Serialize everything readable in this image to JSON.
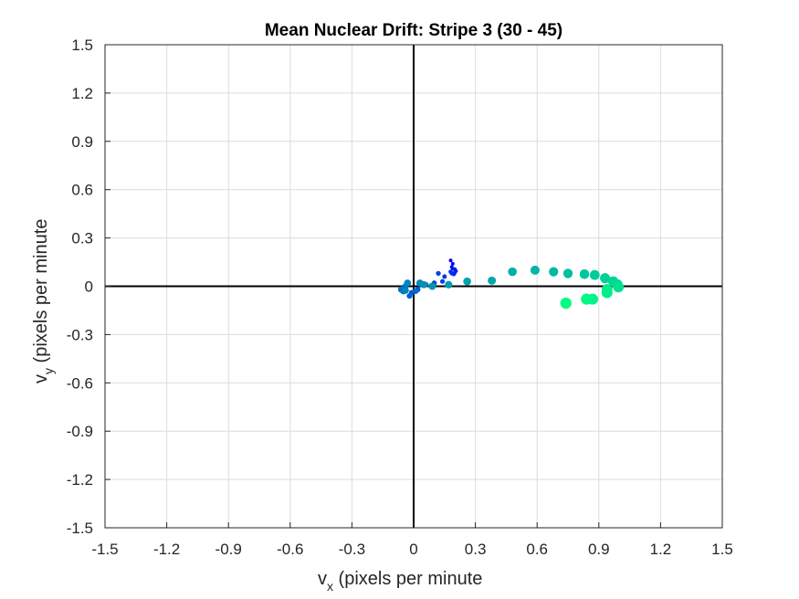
{
  "chart_data": {
    "type": "scatter",
    "title": "Mean Nuclear Drift: Stripe 3 (30 - 45)",
    "xlabel": {
      "main": "v",
      "sub": "x",
      "rest": " (pixels per minute"
    },
    "ylabel": {
      "main": "v",
      "sub": "y",
      "rest": " (pixels per minute"
    },
    "xlim": [
      -1.5,
      1.5
    ],
    "ylim": [
      -1.5,
      1.5
    ],
    "xticks": [
      "-1.5",
      "-1.2",
      "-0.9",
      "-0.6",
      "-0.3",
      "0",
      "0.3",
      "0.6",
      "0.9",
      "1.2",
      "1.5"
    ],
    "yticks": [
      "1.5",
      "1.2",
      "0.9",
      "0.6",
      "0.3",
      "0",
      "-0.3",
      "-0.6",
      "-0.9",
      "-1.2",
      "-1.5"
    ],
    "grid": true,
    "color_start": "#0000ff",
    "color_end": "#00ff80",
    "points": [
      {
        "x": 0.18,
        "y": 0.16,
        "s": 2.0
      },
      {
        "x": 0.19,
        "y": 0.14,
        "s": 2.0
      },
      {
        "x": 0.185,
        "y": 0.12,
        "s": 2.0
      },
      {
        "x": 0.19,
        "y": 0.11,
        "s": 2.0
      },
      {
        "x": 0.2,
        "y": 0.105,
        "s": 2.2
      },
      {
        "x": 0.205,
        "y": 0.095,
        "s": 2.2
      },
      {
        "x": 0.2,
        "y": 0.085,
        "s": 2.2
      },
      {
        "x": 0.195,
        "y": 0.075,
        "s": 2.3
      },
      {
        "x": 0.185,
        "y": 0.08,
        "s": 2.3
      },
      {
        "x": 0.18,
        "y": 0.09,
        "s": 2.4
      },
      {
        "x": 0.15,
        "y": 0.06,
        "s": 2.5
      },
      {
        "x": 0.14,
        "y": 0.03,
        "s": 2.6
      },
      {
        "x": 0.12,
        "y": 0.08,
        "s": 2.7
      },
      {
        "x": 0.1,
        "y": 0.02,
        "s": 2.8
      },
      {
        "x": 0.06,
        "y": 0.01,
        "s": 2.8
      },
      {
        "x": 0.02,
        "y": -0.02,
        "s": 3.0
      },
      {
        "x": -0.01,
        "y": -0.04,
        "s": 3.0
      },
      {
        "x": -0.02,
        "y": -0.06,
        "s": 3.1
      },
      {
        "x": 0.01,
        "y": -0.03,
        "s": 3.2
      },
      {
        "x": -0.04,
        "y": 0.0,
        "s": 3.4
      },
      {
        "x": -0.06,
        "y": -0.02,
        "s": 3.6
      },
      {
        "x": -0.05,
        "y": -0.03,
        "s": 3.7
      },
      {
        "x": -0.04,
        "y": -0.025,
        "s": 3.8
      },
      {
        "x": -0.03,
        "y": 0.02,
        "s": 3.8
      },
      {
        "x": 0.03,
        "y": 0.02,
        "s": 3.9
      },
      {
        "x": 0.05,
        "y": 0.01,
        "s": 3.9
      },
      {
        "x": 0.09,
        "y": 0.0,
        "s": 4.0
      },
      {
        "x": 0.17,
        "y": 0.01,
        "s": 4.1
      },
      {
        "x": 0.26,
        "y": 0.03,
        "s": 4.3
      },
      {
        "x": 0.38,
        "y": 0.035,
        "s": 4.5
      },
      {
        "x": 0.48,
        "y": 0.09,
        "s": 4.8
      },
      {
        "x": 0.59,
        "y": 0.1,
        "s": 5.0
      },
      {
        "x": 0.68,
        "y": 0.09,
        "s": 5.1
      },
      {
        "x": 0.75,
        "y": 0.08,
        "s": 5.2
      },
      {
        "x": 0.83,
        "y": 0.075,
        "s": 5.3
      },
      {
        "x": 0.88,
        "y": 0.07,
        "s": 5.4
      },
      {
        "x": 0.93,
        "y": 0.05,
        "s": 5.5
      },
      {
        "x": 0.97,
        "y": 0.03,
        "s": 5.6
      },
      {
        "x": 0.99,
        "y": 0.01,
        "s": 5.8
      },
      {
        "x": 0.995,
        "y": -0.005,
        "s": 5.9
      },
      {
        "x": 0.94,
        "y": -0.02,
        "s": 5.9
      },
      {
        "x": 0.94,
        "y": -0.04,
        "s": 6.0
      },
      {
        "x": 0.87,
        "y": -0.08,
        "s": 6.0
      },
      {
        "x": 0.84,
        "y": -0.08,
        "s": 6.1
      },
      {
        "x": 0.74,
        "y": -0.105,
        "s": 6.2
      }
    ]
  }
}
